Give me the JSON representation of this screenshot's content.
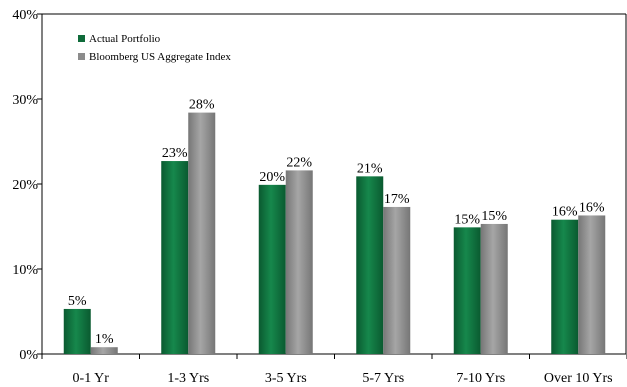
{
  "chart_data": {
    "type": "bar",
    "categories": [
      "0-1 Yr",
      "1-3 Yrs",
      "3-5 Yrs",
      "5-7 Yrs",
      "7-10 Yrs",
      "Over 10 Yrs"
    ],
    "series": [
      {
        "name": "Actual Portfolio",
        "color": "#0f6b3a",
        "values": [
          5.3,
          22.7,
          19.9,
          20.9,
          14.9,
          15.8
        ],
        "labels": [
          "5%",
          "23%",
          "20%",
          "21%",
          "15%",
          "16%"
        ]
      },
      {
        "name": "Bloomberg US Aggregate Index",
        "color": "#8c8c8c",
        "values": [
          0.8,
          28.4,
          21.6,
          17.3,
          15.3,
          16.3
        ],
        "labels": [
          "1%",
          "28%",
          "22%",
          "17%",
          "15%",
          "16%"
        ]
      }
    ],
    "y_ticks": [
      "0%",
      "10%",
      "20%",
      "30%",
      "40%"
    ],
    "ylim": [
      0,
      40
    ],
    "grid": false,
    "legend_position": "top-left"
  }
}
